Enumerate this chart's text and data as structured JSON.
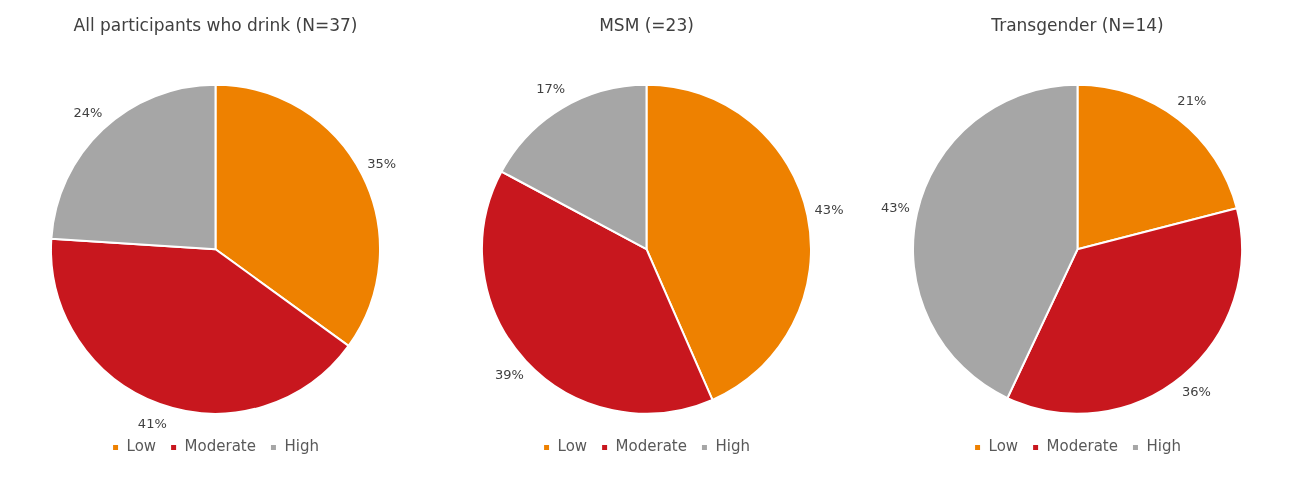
{
  "chart_data": [
    {
      "type": "pie",
      "title": "All participants who drink (N=37)",
      "categories": [
        "Low",
        "Moderate",
        "High"
      ],
      "values": [
        35,
        41,
        24
      ],
      "colors": [
        "#ee8100",
        "#c8171e",
        "#a6a6a6"
      ],
      "value_labels": [
        "35%",
        "41%",
        "24%"
      ],
      "legend": "bottom"
    },
    {
      "type": "pie",
      "title": "MSM (=23)",
      "categories": [
        "Low",
        "Moderate",
        "High"
      ],
      "values": [
        43,
        39,
        17
      ],
      "colors": [
        "#ee8100",
        "#c8171e",
        "#a6a6a6"
      ],
      "value_labels": [
        "43%",
        "39%",
        "17%"
      ],
      "legend": "bottom"
    },
    {
      "type": "pie",
      "title": "Transgender (N=14)",
      "categories": [
        "Low",
        "Moderate",
        "High"
      ],
      "values": [
        21,
        36,
        43
      ],
      "colors": [
        "#ee8100",
        "#c8171e",
        "#a6a6a6"
      ],
      "value_labels": [
        "21%",
        "36%",
        "43%"
      ],
      "legend": "bottom"
    }
  ]
}
